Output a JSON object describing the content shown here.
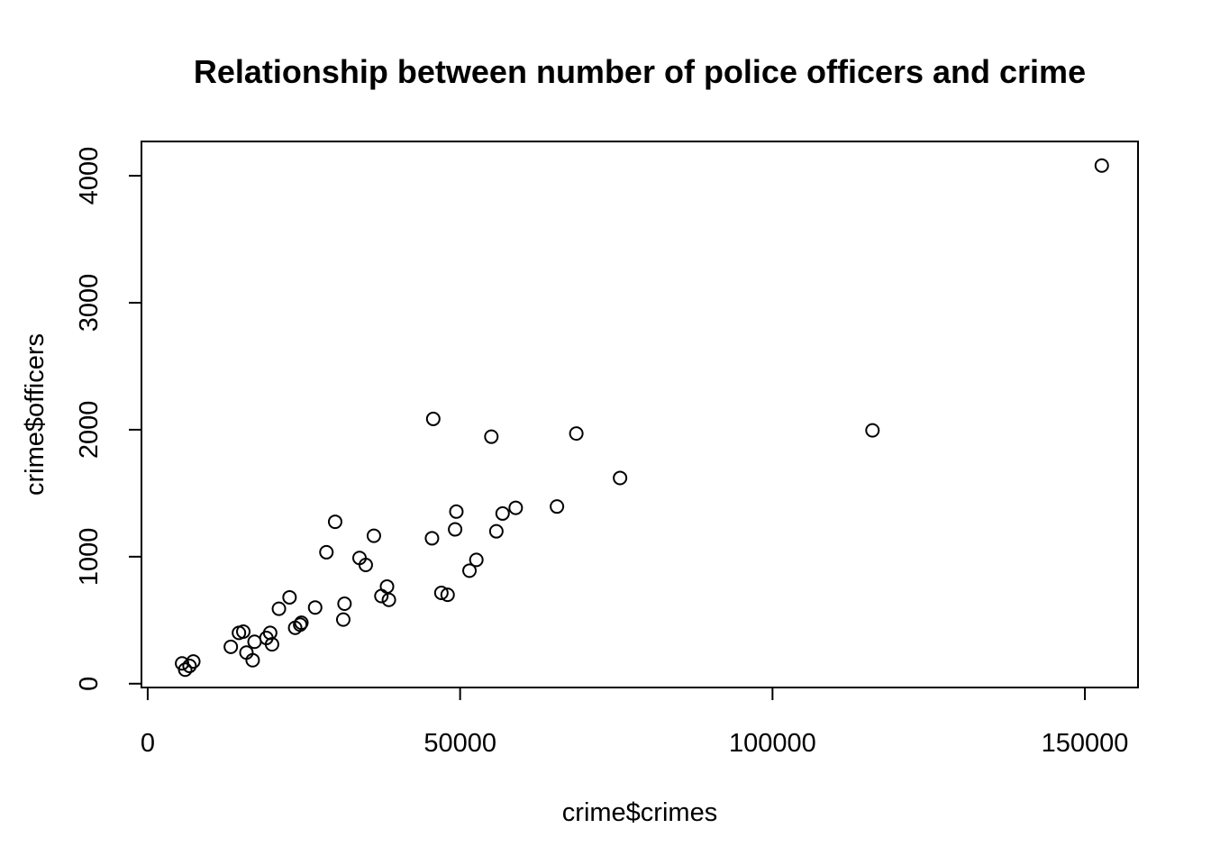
{
  "chart_data": {
    "type": "scatter",
    "title": "Relationship between number of police officers and crime",
    "xlabel": "crime$crimes",
    "ylabel": "crime$officers",
    "xlim": [
      -1000,
      158500
    ],
    "ylim": [
      -30,
      4270
    ],
    "xticks": [
      0,
      50000,
      100000,
      150000
    ],
    "xtick_labels": [
      "0",
      "50000",
      "100000",
      "150000"
    ],
    "yticks": [
      0,
      1000,
      2000,
      3000,
      4000
    ],
    "ytick_labels": [
      "0",
      "1000",
      "2000",
      "3000",
      "4000"
    ],
    "grid": false,
    "marker": "open-circle",
    "x": [
      5500,
      6000,
      6700,
      7300,
      13300,
      14600,
      15300,
      15800,
      16800,
      17100,
      19000,
      19600,
      19900,
      21000,
      22700,
      23600,
      24400,
      24600,
      26800,
      28600,
      30000,
      31300,
      31500,
      33900,
      34900,
      36200,
      37400,
      38300,
      38600,
      45500,
      45700,
      47000,
      48000,
      49200,
      49400,
      51500,
      52600,
      55000,
      55800,
      56800,
      58900,
      65500,
      68600,
      75600,
      116000,
      152700
    ],
    "y": [
      160,
      110,
      140,
      175,
      290,
      400,
      410,
      245,
      185,
      330,
      360,
      400,
      310,
      590,
      680,
      440,
      465,
      480,
      600,
      1035,
      1275,
      505,
      630,
      990,
      935,
      1165,
      690,
      765,
      660,
      1145,
      2085,
      715,
      700,
      1215,
      1355,
      890,
      975,
      1945,
      1200,
      1340,
      1385,
      1395,
      1970,
      1620,
      1995,
      4080
    ]
  }
}
